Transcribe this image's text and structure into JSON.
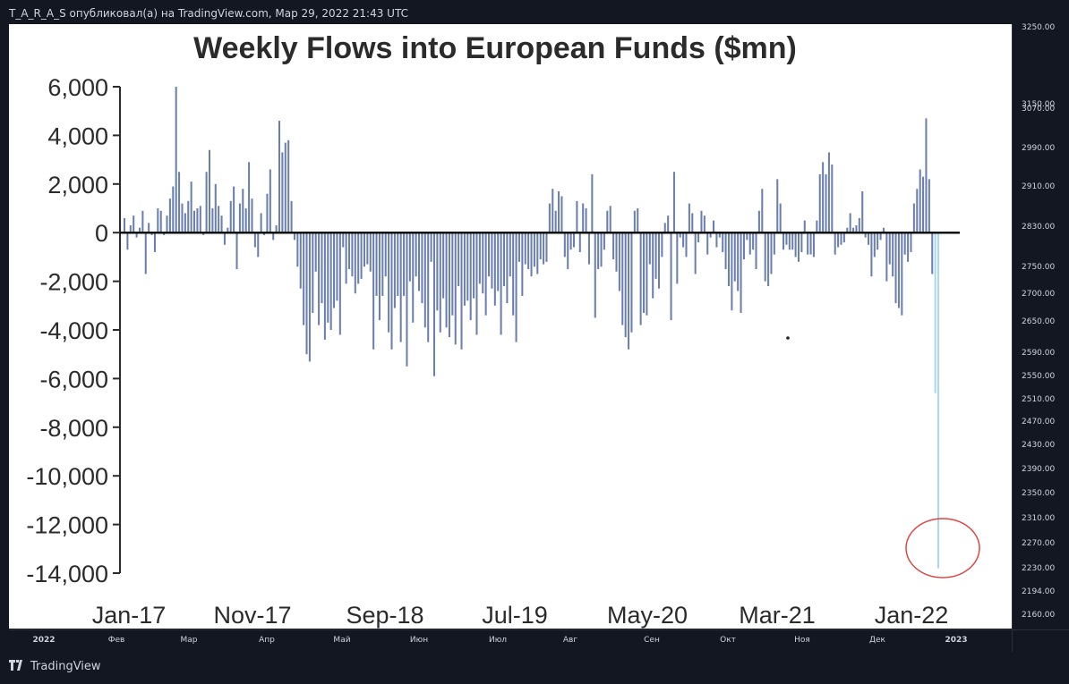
{
  "header": {
    "publisher_text": "T_A_R_A_S опубликовал(а) на TradingView.com, Мар 29, 2022 21:43 UTC"
  },
  "footer": {
    "brand_label": "TradingView",
    "logo_icon": "tradingview-logo-icon"
  },
  "price_axis": {
    "labels": [
      "3250.00",
      "3150.00",
      "3070.00",
      "2990.00",
      "2910.00",
      "2830.00",
      "2750.00",
      "2700.00",
      "2650.00",
      "2590.00",
      "2550.00",
      "2510.00",
      "2470.00",
      "2430.00",
      "2390.00",
      "2350.00",
      "2310.00",
      "2270.00",
      "2230.00",
      "2194.00",
      "2160.00"
    ]
  },
  "time_axis": {
    "labels": [
      "2022",
      "Фев",
      "Мар",
      "Апр",
      "Май",
      "Июн",
      "Июл",
      "Авг",
      "Сен",
      "Окт",
      "Ноя",
      "Дек",
      "2023"
    ]
  },
  "colors": {
    "bar": "#6b7fae",
    "highlight_bar": "#a9d8ec",
    "circle": "#e04545",
    "zero_line": "#111111",
    "axis_text": "#2b2b2b"
  },
  "chart_data": {
    "type": "bar",
    "title": "Weekly Flows into European Funds ($mn)",
    "xlabel": "",
    "ylabel": "",
    "ylim": [
      -14000,
      6000
    ],
    "yticks": [
      6000,
      4000,
      2000,
      0,
      -2000,
      -4000,
      -6000,
      -8000,
      -10000,
      -12000,
      -14000
    ],
    "ytick_labels": [
      "6,000",
      "4,000",
      "2,000",
      "0",
      "-2,000",
      "-4,000",
      "-6,000",
      "-8,000",
      "-10,000",
      "-12,000",
      "-14,000"
    ],
    "x_tick_labels": [
      "Jan-17",
      "Nov-17",
      "Sep-18",
      "Jul-19",
      "May-20",
      "Mar-21",
      "Jan-22"
    ],
    "values": [
      600,
      -700,
      300,
      700,
      -200,
      200,
      900,
      -1700,
      400,
      -100,
      -800,
      1000,
      900,
      -100,
      700,
      1400,
      1900,
      6000,
      2500,
      1200,
      800,
      1300,
      2100,
      900,
      1000,
      1100,
      -100,
      2500,
      3400,
      1000,
      2000,
      1100,
      700,
      -500,
      200,
      1300,
      1900,
      -1500,
      1200,
      1800,
      1000,
      2900,
      1400,
      -600,
      -1000,
      800,
      -100,
      1600,
      2600,
      -300,
      300,
      4600,
      3300,
      3700,
      3800,
      1300,
      -300,
      -1400,
      -2300,
      -3800,
      -5000,
      -5300,
      -3300,
      -1600,
      -3800,
      -2900,
      -4400,
      -3700,
      -4000,
      -3100,
      -2800,
      -4200,
      -600,
      -2100,
      -1500,
      -1800,
      -2500,
      -2100,
      -1900,
      -1400,
      -1300,
      -1600,
      -4800,
      -2600,
      -3600,
      -2600,
      -1800,
      -4100,
      -4800,
      -3100,
      -2600,
      -4500,
      -2600,
      -5500,
      -2000,
      -3700,
      -1800,
      -2400,
      -2900,
      -3900,
      -4500,
      -1200,
      -5900,
      -3200,
      -4100,
      -2700,
      -3900,
      -4300,
      -3400,
      -4600,
      -2200,
      -4800,
      -3000,
      -2800,
      -3600,
      -2700,
      -4200,
      -2100,
      -2500,
      -3400,
      -1800,
      -2300,
      -3000,
      -2400,
      -4200,
      -2200,
      -2900,
      -1800,
      -3400,
      -4500,
      -1200,
      -2600,
      -1300,
      -1500,
      -1800,
      -1400,
      -1700,
      -1100,
      -1300,
      -1200,
      1200,
      1800,
      900,
      1700,
      1500,
      -1000,
      -1500,
      -700,
      -600,
      1300,
      -800,
      1200,
      1000,
      -1300,
      2400,
      -3500,
      -1500,
      -1400,
      -700,
      900,
      1100,
      -1100,
      -1600,
      -2400,
      -3800,
      -4300,
      -4800,
      -4100,
      900,
      1000,
      -3800,
      -3300,
      -3400,
      -1300,
      -2700,
      -1900,
      -2300,
      -1000,
      400,
      700,
      -3600,
      2500,
      -2100,
      -200,
      -600,
      -1000,
      1200,
      800,
      -1700,
      -400,
      900,
      700,
      -900,
      -200,
      500,
      -600,
      -200,
      -800,
      -1500,
      -2200,
      -3200,
      -2000,
      -2400,
      -3300,
      -1100,
      -300,
      -900,
      -700,
      -1500,
      900,
      1800,
      -2000,
      -2200,
      -1700,
      -900,
      2200,
      1200,
      -700,
      -500,
      -700,
      -700,
      -1000,
      -1200,
      -800,
      500,
      -900,
      -900,
      -1000,
      500,
      2400,
      2900,
      2400,
      3300,
      2800,
      -900,
      -600,
      -500,
      -400,
      200,
      800,
      200,
      300,
      600,
      1700,
      -200,
      -500,
      -1800,
      -1000,
      -700,
      -300,
      200,
      -2000,
      -1300,
      -1800,
      -2900,
      -3100,
      -3400,
      -900,
      -1200,
      -800,
      1200,
      1800,
      2600,
      2300,
      4700,
      2200,
      -1700,
      -6600,
      -13800
    ]
  }
}
